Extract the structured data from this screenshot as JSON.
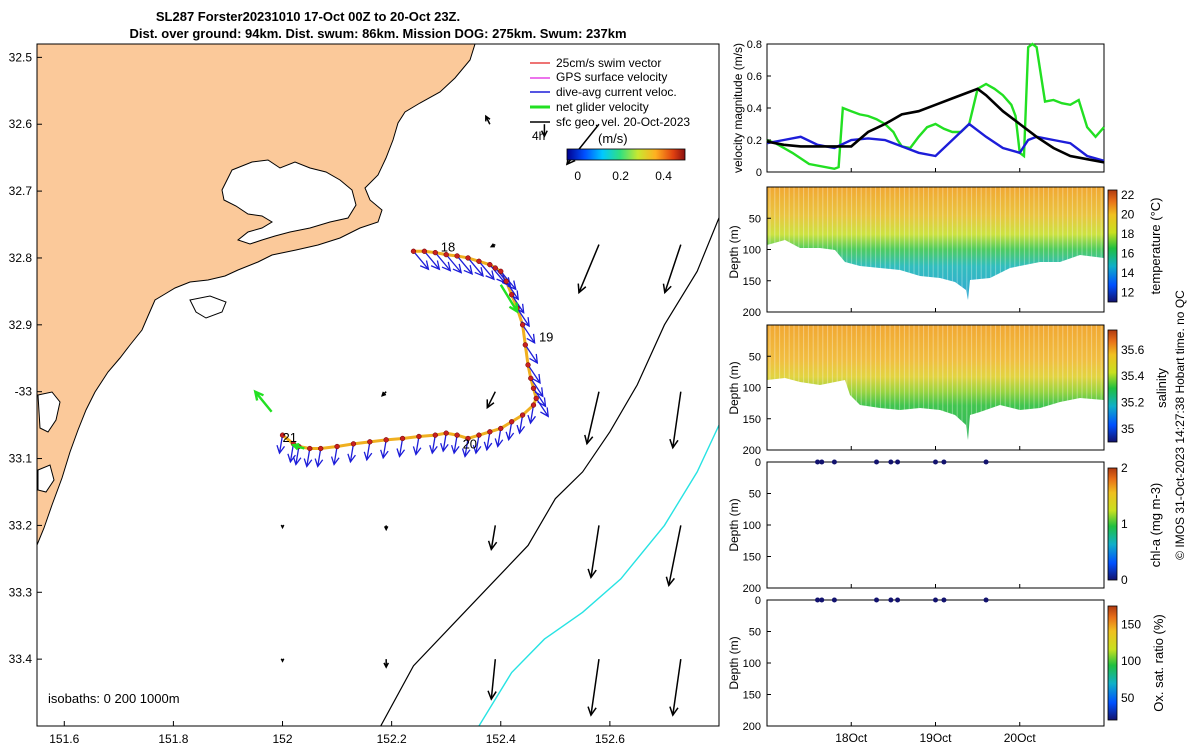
{
  "title_line1": "SL287 Forster20231010 17-Oct 00Z to 20-Oct 23Z.",
  "title_line2": "Dist. over ground: 94km. Dist. swum: 86km. Mission DOG: 275km. Swum: 237km",
  "footer": "© IMOS 31-Oct-2023 14:27:38 Hobart time. no QC",
  "colors": {
    "land": "#fbc99a",
    "iso200": "#000000",
    "iso1000": "#27e3e3",
    "velocity_green": "#22e022",
    "velocity_blue": "#1d1dd9",
    "velocity_black": "#000000",
    "dive_vec": "#1f2fe0"
  },
  "chart_data": [
    {
      "id": "map",
      "type": "scatter",
      "title": "SL287 Forster20231010 17-Oct 00Z to 20-Oct 23Z.",
      "xlabel": "",
      "ylabel": "",
      "xlim": [
        151.55,
        152.8
      ],
      "ylim": [
        -33.5,
        -32.48
      ],
      "x_ticks": [
        151.6,
        151.8,
        152,
        152.2,
        152.4,
        152.6
      ],
      "x_tick_labels": [
        "151.6",
        "151.8",
        "152",
        "152.2",
        "152.4",
        "152.6"
      ],
      "y_ticks": [
        -32.5,
        -32.6,
        -32.7,
        -32.8,
        -32.9,
        -33.0,
        -33.1,
        -33.2,
        -33.3,
        -33.4
      ],
      "y_tick_labels": [
        "32.5",
        "32.6",
        "32.7",
        "32.8",
        "32.9",
        "-33",
        "33.1",
        "33.2",
        "33.3",
        "33.4"
      ],
      "legend": {
        "placement": "top-right",
        "entries": [
          {
            "label": "25cm/s swim vector",
            "color": "#e32020"
          },
          {
            "label": "GPS surface velocity",
            "color": "#e020e0"
          },
          {
            "label": "dive-avg current veloc.",
            "color": "#1d1dd9"
          },
          {
            "label": "net glider velocity",
            "color": "#22e022"
          },
          {
            "label": "sfc geo. vel. 20-Oct-2023",
            "color": "#000000"
          }
        ],
        "sublabel": "4h"
      },
      "colorbar": {
        "label": "(m/s)",
        "ticks": [
          0,
          0.2,
          0.4
        ],
        "tick_labels": [
          "0",
          "0.2",
          "0.4"
        ],
        "range": [
          -0.05,
          0.5
        ]
      },
      "annotation": "isobaths: 0   200  1000m",
      "day_labels": [
        {
          "text": "18",
          "x": 152.29,
          "y": -32.79
        },
        {
          "text": "19",
          "x": 152.47,
          "y": -32.925
        },
        {
          "text": "20",
          "x": 152.33,
          "y": -33.085
        },
        {
          "text": "21",
          "x": 152.0,
          "y": -33.075
        }
      ],
      "glider_track": [
        [
          152.24,
          -32.79
        ],
        [
          152.26,
          -32.79
        ],
        [
          152.28,
          -32.792
        ],
        [
          152.3,
          -32.795
        ],
        [
          152.32,
          -32.797
        ],
        [
          152.34,
          -32.8
        ],
        [
          152.36,
          -32.805
        ],
        [
          152.38,
          -32.81
        ],
        [
          152.39,
          -32.815
        ],
        [
          152.4,
          -32.82
        ],
        [
          152.41,
          -32.835
        ],
        [
          152.42,
          -32.855
        ],
        [
          152.43,
          -32.875
        ],
        [
          152.44,
          -32.9
        ],
        [
          152.445,
          -32.93
        ],
        [
          152.45,
          -32.96
        ],
        [
          152.455,
          -32.98
        ],
        [
          152.46,
          -32.995
        ],
        [
          152.465,
          -33.01
        ],
        [
          152.46,
          -33.02
        ],
        [
          152.44,
          -33.035
        ],
        [
          152.42,
          -33.045
        ],
        [
          152.4,
          -33.055
        ],
        [
          152.38,
          -33.06
        ],
        [
          152.36,
          -33.065
        ],
        [
          152.34,
          -33.07
        ],
        [
          152.32,
          -33.065
        ],
        [
          152.3,
          -33.062
        ],
        [
          152.28,
          -33.065
        ],
        [
          152.25,
          -33.067
        ],
        [
          152.22,
          -33.07
        ],
        [
          152.19,
          -33.072
        ],
        [
          152.16,
          -33.075
        ],
        [
          152.13,
          -33.078
        ],
        [
          152.1,
          -33.082
        ],
        [
          152.07,
          -33.085
        ],
        [
          152.05,
          -33.085
        ],
        [
          152.03,
          -33.082
        ],
        [
          152.02,
          -33.078
        ],
        [
          152.0,
          -33.065
        ]
      ],
      "net_velocity_segments": [
        {
          "from": [
            151.98,
            -33.03
          ],
          "to": [
            151.95,
            -33.0
          ]
        },
        {
          "from": [
            152.04,
            -33.085
          ],
          "to": [
            152.02,
            -33.08
          ]
        },
        {
          "from": [
            152.4,
            -32.84
          ],
          "to": [
            152.43,
            -32.88
          ]
        }
      ],
      "geo_vectors": [
        {
          "x": 152.38,
          "y": -32.6,
          "u": -0.01,
          "v": 0.02
        },
        {
          "x": 152.48,
          "y": -32.6,
          "u": 0.0,
          "v": -0.03
        },
        {
          "x": 152.58,
          "y": -32.6,
          "u": -0.08,
          "v": -0.1
        },
        {
          "x": 152.39,
          "y": -32.78,
          "u": -0.01,
          "v": -0.005
        },
        {
          "x": 152.58,
          "y": -32.78,
          "u": -0.05,
          "v": -0.12
        },
        {
          "x": 152.73,
          "y": -32.78,
          "u": -0.04,
          "v": -0.12
        },
        {
          "x": 152.19,
          "y": -33.0,
          "u": -0.01,
          "v": -0.01
        },
        {
          "x": 152.39,
          "y": -33.0,
          "u": -0.02,
          "v": -0.04
        },
        {
          "x": 152.58,
          "y": -33.0,
          "u": -0.03,
          "v": -0.13
        },
        {
          "x": 152.73,
          "y": -33.0,
          "u": -0.02,
          "v": -0.14
        },
        {
          "x": 152.0,
          "y": -33.2,
          "u": 0.0,
          "v": -0.005
        },
        {
          "x": 152.19,
          "y": -33.2,
          "u": 0.0,
          "v": -0.01
        },
        {
          "x": 152.39,
          "y": -33.2,
          "u": -0.01,
          "v": -0.06
        },
        {
          "x": 152.58,
          "y": -33.2,
          "u": -0.02,
          "v": -0.13
        },
        {
          "x": 152.73,
          "y": -33.2,
          "u": -0.03,
          "v": -0.15
        },
        {
          "x": 152.0,
          "y": -33.4,
          "u": 0.0,
          "v": -0.005
        },
        {
          "x": 152.19,
          "y": -33.4,
          "u": 0.0,
          "v": -0.02
        },
        {
          "x": 152.39,
          "y": -33.4,
          "u": -0.01,
          "v": -0.1
        },
        {
          "x": 152.58,
          "y": -33.4,
          "u": -0.02,
          "v": -0.14
        },
        {
          "x": 152.73,
          "y": -33.4,
          "u": -0.02,
          "v": -0.14
        }
      ],
      "isobath_200": [
        [
          152.18,
          -33.5
        ],
        [
          152.24,
          -33.41
        ],
        [
          152.31,
          -33.35
        ],
        [
          152.38,
          -33.29
        ],
        [
          152.45,
          -33.23
        ],
        [
          152.5,
          -33.16
        ],
        [
          152.55,
          -33.12
        ],
        [
          152.6,
          -33.06
        ],
        [
          152.65,
          -32.99
        ],
        [
          152.7,
          -32.9
        ],
        [
          152.76,
          -32.82
        ],
        [
          152.8,
          -32.74
        ]
      ],
      "isobath_1000": [
        [
          152.36,
          -33.5
        ],
        [
          152.42,
          -33.42
        ],
        [
          152.48,
          -33.37
        ],
        [
          152.55,
          -33.33
        ],
        [
          152.62,
          -33.28
        ],
        [
          152.7,
          -33.2
        ],
        [
          152.76,
          -33.12
        ],
        [
          152.8,
          -33.05
        ]
      ]
    },
    {
      "id": "velocity",
      "type": "line",
      "ylabel": "velocity magnitude (m/s)",
      "xlim": [
        17.0,
        21.0
      ],
      "ylim": [
        0,
        0.8
      ],
      "y_ticks": [
        0,
        0.2,
        0.4,
        0.6,
        0.8
      ],
      "y_tick_labels": [
        "0",
        "0.2",
        "0.4",
        "0.6",
        "0.8"
      ],
      "series": [
        {
          "name": "net glider velocity",
          "color": "#22e022",
          "x": [
            17.0,
            17.1,
            17.2,
            17.3,
            17.5,
            17.8,
            17.85,
            17.9,
            18.0,
            18.1,
            18.2,
            18.3,
            18.4,
            18.5,
            18.55,
            18.6,
            18.7,
            18.8,
            18.9,
            19.0,
            19.1,
            19.2,
            19.3,
            19.4,
            19.5,
            19.6,
            19.7,
            19.8,
            19.9,
            19.95,
            20.0,
            20.05,
            20.1,
            20.15,
            20.2,
            20.3,
            20.4,
            20.5,
            20.6,
            20.7,
            20.8,
            20.9,
            21.0
          ],
          "values": [
            0.2,
            0.18,
            0.15,
            0.12,
            0.05,
            0.02,
            0.03,
            0.4,
            0.38,
            0.36,
            0.35,
            0.33,
            0.3,
            0.25,
            0.2,
            0.16,
            0.15,
            0.22,
            0.28,
            0.3,
            0.27,
            0.25,
            0.25,
            0.3,
            0.52,
            0.55,
            0.52,
            0.48,
            0.42,
            0.35,
            0.12,
            0.1,
            0.78,
            0.8,
            0.78,
            0.44,
            0.45,
            0.43,
            0.42,
            0.45,
            0.28,
            0.22,
            0.28
          ]
        },
        {
          "name": "dive-avg current veloc.",
          "color": "#1d1dd9",
          "x": [
            17.0,
            17.2,
            17.4,
            17.6,
            17.8,
            18.0,
            18.2,
            18.4,
            18.6,
            18.8,
            19.0,
            19.2,
            19.4,
            19.6,
            19.8,
            20.0,
            20.1,
            20.2,
            20.4,
            20.6,
            20.8,
            21.0
          ],
          "values": [
            0.18,
            0.2,
            0.22,
            0.17,
            0.15,
            0.2,
            0.21,
            0.2,
            0.16,
            0.12,
            0.1,
            0.2,
            0.3,
            0.22,
            0.15,
            0.12,
            0.2,
            0.22,
            0.2,
            0.18,
            0.1,
            0.07
          ]
        },
        {
          "name": "sfc geo. vel.",
          "color": "#000000",
          "x": [
            17.0,
            17.2,
            17.4,
            17.6,
            17.8,
            18.0,
            18.2,
            18.4,
            18.6,
            18.8,
            19.0,
            19.2,
            19.4,
            19.5,
            19.6,
            19.8,
            20.0,
            20.2,
            20.4,
            20.6,
            20.8,
            21.0
          ],
          "values": [
            0.19,
            0.17,
            0.16,
            0.16,
            0.16,
            0.16,
            0.25,
            0.3,
            0.36,
            0.38,
            0.42,
            0.46,
            0.5,
            0.52,
            0.48,
            0.38,
            0.3,
            0.22,
            0.15,
            0.1,
            0.08,
            0.06
          ]
        }
      ]
    },
    {
      "id": "temperature",
      "type": "scatter",
      "ylabel": "Depth (m)",
      "colorbar_label": "temperature (°C)",
      "xlim": [
        17.0,
        21.0
      ],
      "ylim": [
        200,
        0
      ],
      "y_ticks": [
        50,
        100,
        150,
        200
      ],
      "y_tick_labels": [
        "50",
        "100",
        "150",
        "200"
      ],
      "color_ticks": [
        12,
        14,
        16,
        18,
        20,
        22
      ],
      "color_range": [
        11,
        22.5
      ]
    },
    {
      "id": "salinity",
      "type": "scatter",
      "ylabel": "Depth (m)",
      "colorbar_label": "salinity",
      "xlim": [
        17.0,
        21.0
      ],
      "ylim": [
        200,
        0
      ],
      "y_ticks": [
        50,
        100,
        150,
        200
      ],
      "y_tick_labels": [
        "50",
        "100",
        "150",
        "200"
      ],
      "color_ticks": [
        35,
        35.2,
        35.4,
        35.6
      ],
      "color_range": [
        34.9,
        35.75
      ]
    },
    {
      "id": "chla",
      "type": "scatter",
      "ylabel": "Depth (m)",
      "colorbar_label": "chl-a (mg m-3)",
      "xlim": [
        17.0,
        21.0
      ],
      "ylim": [
        200,
        0
      ],
      "y_ticks": [
        0,
        50,
        100,
        150,
        200
      ],
      "y_tick_labels": [
        "0",
        "50",
        "100",
        "150",
        "200"
      ],
      "color_ticks": [
        0,
        1,
        2
      ],
      "color_range": [
        0,
        2
      ],
      "points_x": [
        17.6,
        17.65,
        17.8,
        18.3,
        18.47,
        18.55,
        19.0,
        19.1,
        19.6
      ]
    },
    {
      "id": "oxygen",
      "type": "scatter",
      "ylabel": "Depth (m)",
      "colorbar_label": "Ox. sat. ratio (%)",
      "xlim": [
        17.0,
        21.0
      ],
      "ylim": [
        200,
        0
      ],
      "y_ticks": [
        0,
        50,
        100,
        150,
        200
      ],
      "y_tick_labels": [
        "0",
        "50",
        "100",
        "150",
        "200"
      ],
      "x_ticks": [
        18,
        19,
        20
      ],
      "x_tick_labels": [
        "18Oct",
        "19Oct",
        "20Oct"
      ],
      "color_ticks": [
        50,
        100,
        150
      ],
      "color_range": [
        20,
        175
      ],
      "points_x": [
        17.6,
        17.65,
        17.8,
        18.3,
        18.47,
        18.55,
        19.0,
        19.1,
        19.6
      ]
    }
  ]
}
